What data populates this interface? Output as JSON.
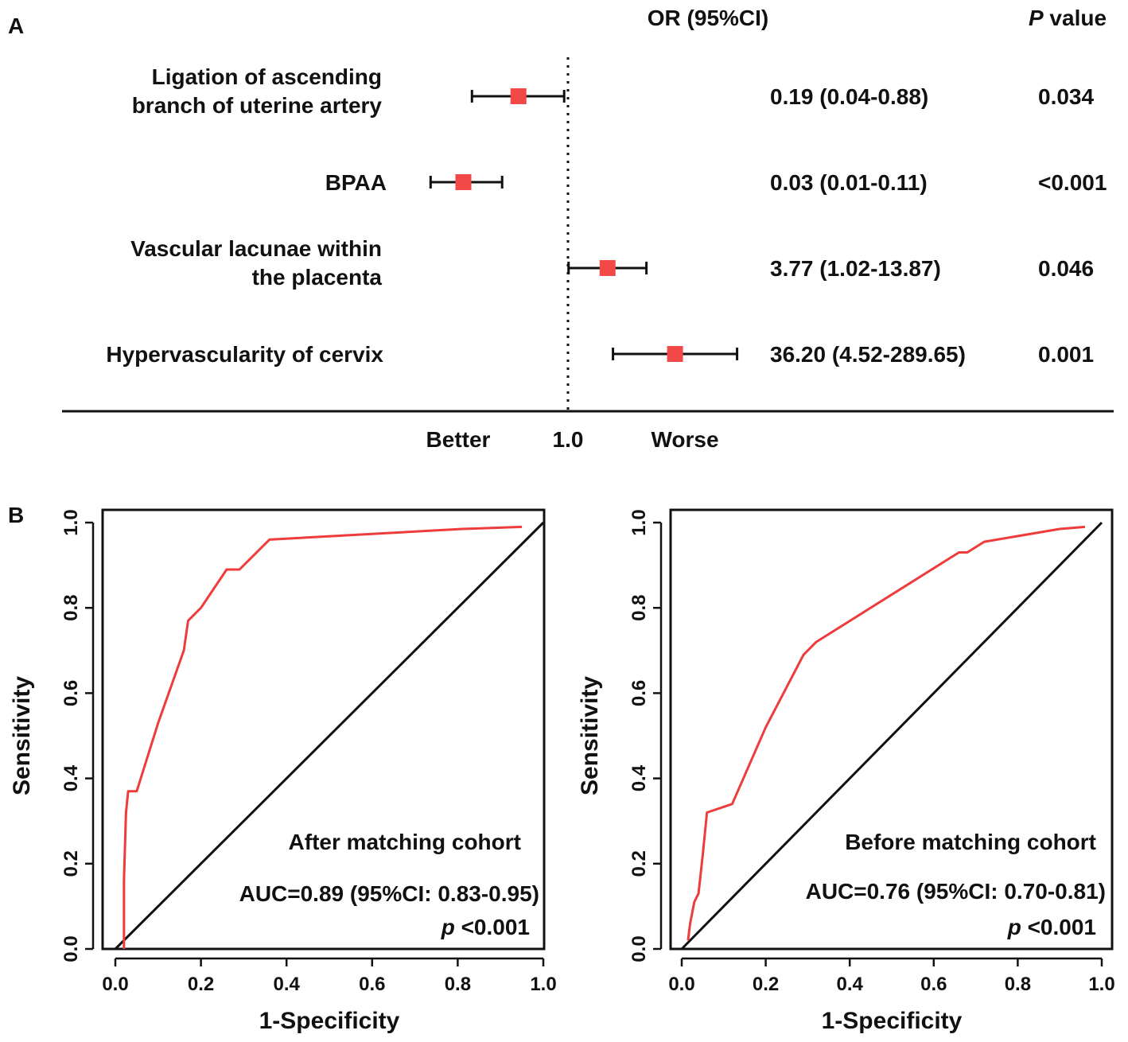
{
  "colors": {
    "marker": "#f24848",
    "roc_line": "#ee3b3b",
    "ink": "#111111"
  },
  "panel_a": {
    "panel_label": "A",
    "or_header": "OR (95%CI)",
    "p_header_italic": "P",
    "p_header_rest": " value",
    "reference_label": "1.0",
    "better_label": "Better",
    "worse_label": "Worse"
  },
  "panel_b": {
    "panel_label": "B"
  },
  "chart_data": [
    {
      "type": "forest",
      "scale": "log",
      "reference": 1.0,
      "rows": [
        {
          "label_lines": [
            "Ligation of ascending",
            "branch of uterine artery"
          ],
          "or": 0.19,
          "ci_low": 0.04,
          "ci_high": 0.88,
          "or_text": "0.19 (0.04-0.88)",
          "p_text": "0.034"
        },
        {
          "label_lines": [
            "BPAA"
          ],
          "or": 0.03,
          "ci_low": 0.01,
          "ci_high": 0.11,
          "or_text": "0.03 (0.01-0.11)",
          "p_text": "<0.001"
        },
        {
          "label_lines": [
            "Vascular lacunae within",
            "the placenta"
          ],
          "or": 3.77,
          "ci_low": 1.02,
          "ci_high": 13.87,
          "or_text": "3.77 (1.02-13.87)",
          "p_text": "0.046"
        },
        {
          "label_lines": [
            "Hypervascularity of cervix"
          ],
          "or": 36.2,
          "ci_low": 4.52,
          "ci_high": 289.65,
          "or_text": "36.20 (4.52-289.65)",
          "p_text": "0.001"
        }
      ]
    },
    {
      "type": "line",
      "xlabel": "1-Specificity",
      "ylabel": "Sensitivity",
      "xlim": [
        0,
        1
      ],
      "ylim": [
        0,
        1
      ],
      "xticks": [
        "0.0",
        "0.2",
        "0.4",
        "0.6",
        "0.8",
        "1.0"
      ],
      "yticks": [
        "0.0",
        "0.2",
        "0.4",
        "0.6",
        "0.8",
        "1.0"
      ],
      "annotation": "After matching cohort",
      "auc_text": "AUC=0.89 (95%CI: 0.83-0.95)",
      "p_italic": "p",
      "p_rest": " <0.001",
      "x": [
        0.02,
        0.02,
        0.025,
        0.03,
        0.03,
        0.045,
        0.05,
        0.1,
        0.16,
        0.17,
        0.2,
        0.26,
        0.27,
        0.29,
        0.36,
        0.81,
        0.95
      ],
      "y": [
        0.0,
        0.16,
        0.32,
        0.37,
        0.37,
        0.37,
        0.37,
        0.53,
        0.7,
        0.77,
        0.8,
        0.89,
        0.89,
        0.89,
        0.96,
        0.985,
        0.99
      ]
    },
    {
      "type": "line",
      "xlabel": "1-Specificity",
      "ylabel": "Sensitivity",
      "xlim": [
        0,
        1
      ],
      "ylim": [
        0,
        1
      ],
      "xticks": [
        "0.0",
        "0.2",
        "0.4",
        "0.6",
        "0.8",
        "1.0"
      ],
      "yticks": [
        "0.0",
        "0.2",
        "0.4",
        "0.6",
        "0.8",
        "1.0"
      ],
      "annotation": "Before matching cohort",
      "auc_text": "AUC=0.76 (95%CI: 0.70-0.81)",
      "p_italic": "p",
      "p_rest": " <0.001",
      "x": [
        0.015,
        0.02,
        0.03,
        0.04,
        0.05,
        0.06,
        0.12,
        0.2,
        0.29,
        0.32,
        0.66,
        0.68,
        0.72,
        0.9,
        0.96
      ],
      "y": [
        0.02,
        0.06,
        0.11,
        0.13,
        0.22,
        0.32,
        0.34,
        0.52,
        0.69,
        0.72,
        0.93,
        0.93,
        0.955,
        0.985,
        0.99
      ]
    }
  ]
}
